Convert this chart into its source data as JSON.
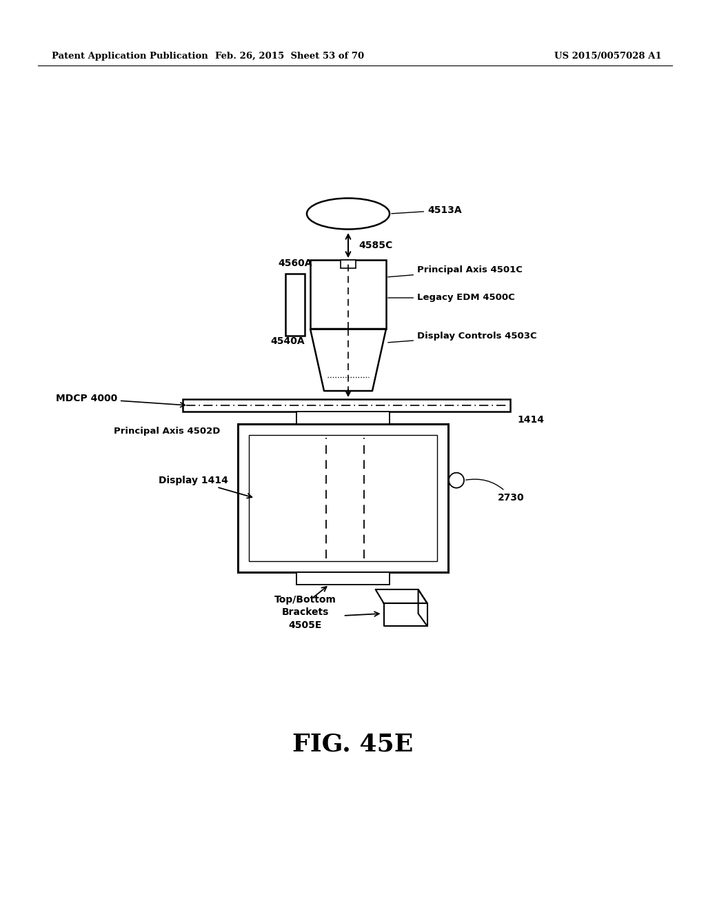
{
  "header_left": "Patent Application Publication",
  "header_mid": "Feb. 26, 2015  Sheet 53 of 70",
  "header_right": "US 2015/0057028 A1",
  "fig_label": "FIG. 45E",
  "bg_color": "#ffffff",
  "line_color": "#000000"
}
